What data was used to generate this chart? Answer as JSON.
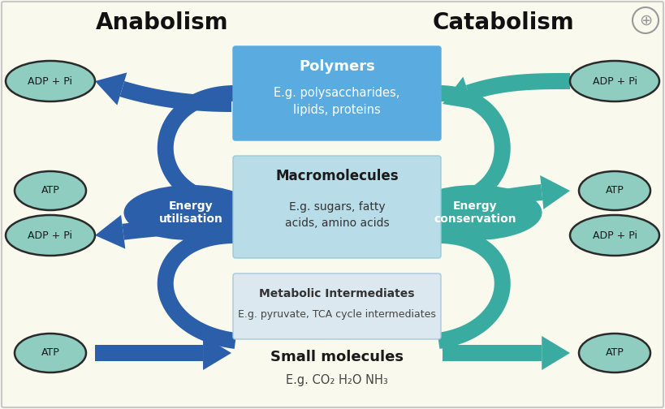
{
  "title_left": "Anabolism",
  "title_right": "Catabolism",
  "bg_color": "#faf9ee",
  "border_color": "#c8c8c8",
  "oval_fill": "#8ecdc0",
  "oval_stroke": "#2a2a2a",
  "box_polymers_fill": "#5aace0",
  "box_macro_fill": "#b8dce8",
  "box_macro_stroke": "#9bcad8",
  "box_meta_fill": "#dce8f0",
  "box_meta_stroke": "#a8c8dc",
  "arrow_left_color": "#2b5faa",
  "arrow_right_color": "#3aaba0",
  "energy_util_fill": "#2b5faa",
  "energy_cons_fill": "#3aaba0",
  "polymers_title": "Polymers",
  "polymers_sub": "E.g. polysaccharides,\nlipids, proteins",
  "macro_title": "Macromolecules",
  "macro_sub": "E.g. sugars, fatty\nacids, amino acids",
  "meta_title": "Metabolic Intermediates",
  "meta_sub": "E.g. pyruvate, TCA cycle intermediates",
  "small_title": "Small molecules",
  "small_sub": "E.g. CO₂ H₂O NH₃",
  "energy_util_text": "Energy\nutilisation",
  "energy_cons_text": "Energy\nconservation"
}
